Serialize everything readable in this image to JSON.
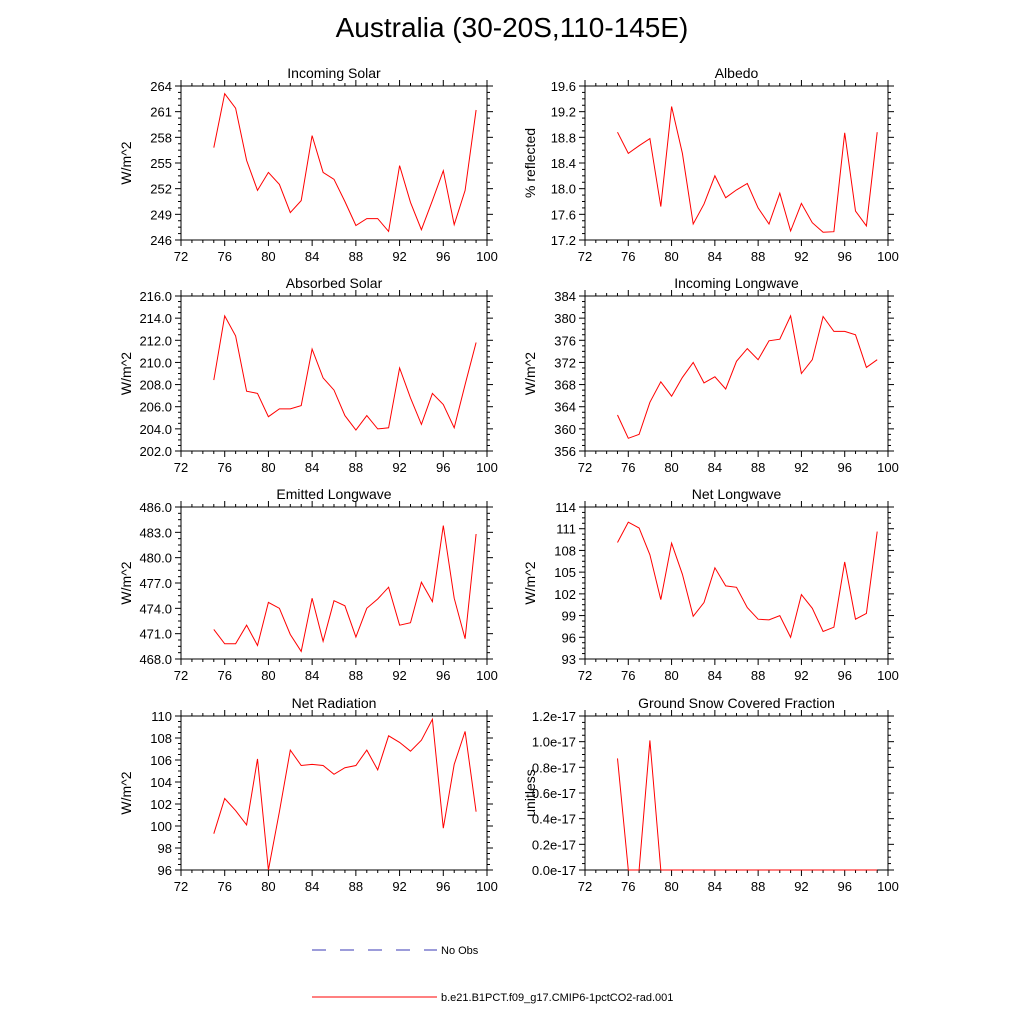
{
  "figure": {
    "title": "Australia (30-20S,110-145E)"
  },
  "legend": [
    {
      "label": "No Obs",
      "color": "#3a3ab5",
      "dash": "dashed"
    },
    {
      "label": "b.e21.B1PCT.f09_g17.CMIP6-1pctCO2-rad.001",
      "color": "#ff0000",
      "dash": "solid"
    }
  ],
  "chart_data": [
    {
      "type": "line",
      "title": "Incoming Solar",
      "ylabel": "W/m^2",
      "xlim": [
        72,
        100
      ],
      "ylim": [
        246,
        264
      ],
      "xticks": [
        72,
        76,
        80,
        84,
        88,
        92,
        96,
        100
      ],
      "xtick_labels": [
        "72",
        "76",
        "80",
        "84",
        "88",
        "92",
        "96",
        "100"
      ],
      "yticks": [
        246,
        249,
        252,
        255,
        258,
        261,
        264
      ],
      "ytick_labels": [
        "246",
        "249",
        "252",
        "255",
        "258",
        "261",
        "264"
      ],
      "series": [
        {
          "name": "b.e21.B1PCT.f09_g17.CMIP6-1pctCO2-rad.001",
          "color": "#ff0000",
          "x": [
            75,
            76,
            77,
            78,
            79,
            80,
            81,
            82,
            83,
            84,
            85,
            86,
            87,
            88,
            89,
            90,
            91,
            92,
            93,
            94,
            95,
            96,
            97,
            98,
            99
          ],
          "y": [
            256.8,
            263.1,
            261.4,
            255.3,
            251.8,
            253.9,
            252.5,
            249.2,
            250.6,
            258.2,
            253.9,
            253.1,
            250.5,
            247.7,
            248.5,
            248.5,
            247.0,
            254.7,
            250.4,
            247.2,
            250.6,
            254.1,
            247.8,
            251.8,
            261.2
          ]
        }
      ]
    },
    {
      "type": "line",
      "title": "Albedo",
      "ylabel": "% reflected",
      "xlim": [
        72,
        100
      ],
      "ylim": [
        17.2,
        19.6
      ],
      "xticks": [
        72,
        76,
        80,
        84,
        88,
        92,
        96,
        100
      ],
      "xtick_labels": [
        "72",
        "76",
        "80",
        "84",
        "88",
        "92",
        "96",
        "100"
      ],
      "yticks": [
        17.2,
        17.6,
        18.0,
        18.4,
        18.8,
        19.2,
        19.6
      ],
      "ytick_labels": [
        "17.2",
        "17.6",
        "18.0",
        "18.4",
        "18.8",
        "19.2",
        "19.6"
      ],
      "series": [
        {
          "name": "b.e21.B1PCT.f09_g17.CMIP6-1pctCO2-rad.001",
          "color": "#ff0000",
          "x": [
            75,
            76,
            77,
            78,
            79,
            80,
            81,
            82,
            83,
            84,
            85,
            86,
            87,
            88,
            89,
            90,
            91,
            92,
            93,
            94,
            95,
            96,
            97,
            98,
            99
          ],
          "y": [
            18.88,
            18.55,
            18.67,
            18.78,
            17.72,
            19.28,
            18.55,
            17.45,
            17.76,
            18.2,
            17.86,
            17.98,
            18.08,
            17.7,
            17.45,
            17.93,
            17.34,
            17.77,
            17.47,
            17.32,
            17.33,
            18.87,
            17.65,
            17.42,
            18.88
          ]
        }
      ]
    },
    {
      "type": "line",
      "title": "Absorbed Solar",
      "ylabel": "W/m^2",
      "xlim": [
        72,
        100
      ],
      "ylim": [
        202.0,
        216.0
      ],
      "xticks": [
        72,
        76,
        80,
        84,
        88,
        92,
        96,
        100
      ],
      "xtick_labels": [
        "72",
        "76",
        "80",
        "84",
        "88",
        "92",
        "96",
        "100"
      ],
      "yticks": [
        202,
        204,
        206,
        208,
        210,
        212,
        214,
        216
      ],
      "ytick_labels": [
        "202.0",
        "204.0",
        "206.0",
        "208.0",
        "210.0",
        "212.0",
        "214.0",
        "216.0"
      ],
      "series": [
        {
          "name": "b.e21.B1PCT.f09_g17.CMIP6-1pctCO2-rad.001",
          "color": "#ff0000",
          "x": [
            75,
            76,
            77,
            78,
            79,
            80,
            81,
            82,
            83,
            84,
            85,
            86,
            87,
            88,
            89,
            90,
            91,
            92,
            93,
            94,
            95,
            96,
            97,
            98,
            99
          ],
          "y": [
            208.4,
            214.2,
            212.4,
            207.4,
            207.2,
            205.1,
            205.8,
            205.8,
            206.1,
            211.2,
            208.6,
            207.5,
            205.2,
            203.9,
            205.2,
            204.0,
            204.1,
            209.5,
            206.8,
            204.4,
            207.2,
            206.2,
            204.1,
            208.0,
            211.8
          ]
        }
      ]
    },
    {
      "type": "line",
      "title": "Incoming Longwave",
      "ylabel": "W/m^2",
      "xlim": [
        72,
        100
      ],
      "ylim": [
        356,
        384
      ],
      "xticks": [
        72,
        76,
        80,
        84,
        88,
        92,
        96,
        100
      ],
      "xtick_labels": [
        "72",
        "76",
        "80",
        "84",
        "88",
        "92",
        "96",
        "100"
      ],
      "yticks": [
        356,
        360,
        364,
        368,
        372,
        376,
        380,
        384
      ],
      "ytick_labels": [
        "356",
        "360",
        "364",
        "368",
        "372",
        "376",
        "380",
        "384"
      ],
      "series": [
        {
          "name": "b.e21.B1PCT.f09_g17.CMIP6-1pctCO2-rad.001",
          "color": "#ff0000",
          "x": [
            75,
            76,
            77,
            78,
            79,
            80,
            81,
            82,
            83,
            84,
            85,
            86,
            87,
            88,
            89,
            90,
            91,
            92,
            93,
            94,
            95,
            96,
            97,
            98,
            99
          ],
          "y": [
            362.5,
            358.3,
            359.0,
            364.8,
            368.5,
            365.9,
            369.3,
            372.0,
            368.3,
            369.4,
            367.2,
            372.2,
            374.5,
            372.5,
            375.9,
            376.2,
            380.4,
            370.0,
            372.5,
            380.3,
            377.6,
            377.6,
            377.0,
            371.1,
            372.5
          ]
        }
      ]
    },
    {
      "type": "line",
      "title": "Emitted Longwave",
      "ylabel": "W/m^2",
      "xlim": [
        72,
        100
      ],
      "ylim": [
        468.0,
        486.0
      ],
      "xticks": [
        72,
        76,
        80,
        84,
        88,
        92,
        96,
        100
      ],
      "xtick_labels": [
        "72",
        "76",
        "80",
        "84",
        "88",
        "92",
        "96",
        "100"
      ],
      "yticks": [
        468,
        471,
        474,
        477,
        480,
        483,
        486
      ],
      "ytick_labels": [
        "468.0",
        "471.0",
        "474.0",
        "477.0",
        "480.0",
        "483.0",
        "486.0"
      ],
      "series": [
        {
          "name": "b.e21.B1PCT.f09_g17.CMIP6-1pctCO2-rad.001",
          "color": "#ff0000",
          "x": [
            75,
            76,
            77,
            78,
            79,
            80,
            81,
            82,
            83,
            84,
            85,
            86,
            87,
            88,
            89,
            90,
            91,
            92,
            93,
            94,
            95,
            96,
            97,
            98,
            99
          ],
          "y": [
            471.5,
            469.8,
            469.8,
            472.0,
            469.6,
            474.7,
            474.0,
            470.9,
            468.9,
            475.2,
            470.1,
            474.9,
            474.3,
            470.6,
            474.0,
            475.1,
            476.5,
            472.0,
            472.3,
            477.1,
            474.8,
            483.8,
            475.2,
            470.4,
            482.8
          ]
        }
      ]
    },
    {
      "type": "line",
      "title": "Net Longwave",
      "ylabel": "W/m^2",
      "xlim": [
        72,
        100
      ],
      "ylim": [
        93,
        114
      ],
      "xticks": [
        72,
        76,
        80,
        84,
        88,
        92,
        96,
        100
      ],
      "xtick_labels": [
        "72",
        "76",
        "80",
        "84",
        "88",
        "92",
        "96",
        "100"
      ],
      "yticks": [
        93,
        96,
        99,
        102,
        105,
        108,
        111,
        114
      ],
      "ytick_labels": [
        "93",
        "96",
        "99",
        "102",
        "105",
        "108",
        "111",
        "114"
      ],
      "series": [
        {
          "name": "b.e21.B1PCT.f09_g17.CMIP6-1pctCO2-rad.001",
          "color": "#ff0000",
          "x": [
            75,
            76,
            77,
            78,
            79,
            80,
            81,
            82,
            83,
            84,
            85,
            86,
            87,
            88,
            89,
            90,
            91,
            92,
            93,
            94,
            95,
            96,
            97,
            98,
            99
          ],
          "y": [
            109.1,
            111.9,
            111.1,
            107.4,
            101.2,
            109.0,
            104.7,
            98.9,
            100.8,
            105.6,
            103.1,
            102.9,
            100.1,
            98.5,
            98.4,
            99.0,
            96.0,
            101.9,
            100.0,
            96.8,
            97.4,
            106.4,
            98.5,
            99.3,
            110.6
          ]
        }
      ]
    },
    {
      "type": "line",
      "title": "Net Radiation",
      "ylabel": "W/m^2",
      "xlim": [
        72,
        100
      ],
      "ylim": [
        96,
        110
      ],
      "xticks": [
        72,
        76,
        80,
        84,
        88,
        92,
        96,
        100
      ],
      "xtick_labels": [
        "72",
        "76",
        "80",
        "84",
        "88",
        "92",
        "96",
        "100"
      ],
      "yticks": [
        96,
        98,
        100,
        102,
        104,
        106,
        108,
        110
      ],
      "ytick_labels": [
        "96",
        "98",
        "100",
        "102",
        "104",
        "106",
        "108",
        "110"
      ],
      "series": [
        {
          "name": "b.e21.B1PCT.f09_g17.CMIP6-1pctCO2-rad.001",
          "color": "#ff0000",
          "x": [
            75,
            76,
            77,
            78,
            79,
            80,
            81,
            82,
            83,
            84,
            85,
            86,
            87,
            88,
            89,
            90,
            91,
            92,
            93,
            94,
            95,
            96,
            97,
            98,
            99
          ],
          "y": [
            99.3,
            102.5,
            101.4,
            100.1,
            106.1,
            96.0,
            101.3,
            106.9,
            105.5,
            105.6,
            105.5,
            104.7,
            105.3,
            105.5,
            106.9,
            105.1,
            108.2,
            107.6,
            106.8,
            107.8,
            109.7,
            99.8,
            105.6,
            108.6,
            101.3
          ]
        }
      ]
    },
    {
      "type": "line",
      "title": "Ground Snow Covered Fraction",
      "ylabel": "unitless",
      "xlim": [
        72,
        100
      ],
      "ylim": [
        0,
        1.2
      ],
      "yunit_note": "e-17",
      "xticks": [
        72,
        76,
        80,
        84,
        88,
        92,
        96,
        100
      ],
      "xtick_labels": [
        "72",
        "76",
        "80",
        "84",
        "88",
        "92",
        "96",
        "100"
      ],
      "yticks": [
        0,
        0.2,
        0.4,
        0.6,
        0.8,
        1.0,
        1.2
      ],
      "ytick_labels": [
        "0.0e-17",
        "0.2e-17",
        "0.4e-17",
        "0.6e-17",
        "0.8e-17",
        "1.0e-17",
        "1.2e-17"
      ],
      "series": [
        {
          "name": "b.e21.B1PCT.f09_g17.CMIP6-1pctCO2-rad.001",
          "color": "#ff0000",
          "x": [
            75,
            76,
            77,
            78,
            79,
            80,
            81,
            82,
            83,
            84,
            85,
            86,
            87,
            88,
            89,
            90,
            91,
            92,
            93,
            94,
            95,
            96,
            97,
            98,
            99
          ],
          "y": [
            0.87,
            0.0,
            0.0,
            1.01,
            0.0,
            0,
            0,
            0,
            0,
            0,
            0,
            0,
            0,
            0,
            0,
            0,
            0,
            0,
            0,
            0,
            0,
            0,
            0,
            0,
            0
          ]
        }
      ]
    }
  ]
}
